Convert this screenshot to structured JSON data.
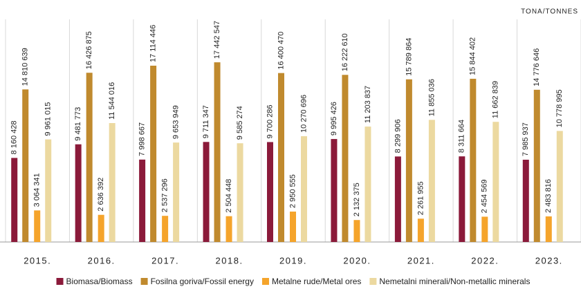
{
  "chart_data": {
    "type": "bar",
    "unit_label": "TONA/TONNES",
    "categories": [
      "2015.",
      "2016.",
      "2017.",
      "2018.",
      "2019.",
      "2020.",
      "2021.",
      "2022.",
      "2023."
    ],
    "ylim": [
      0,
      20000000
    ],
    "series": [
      {
        "name": "Biomasa/Biomass",
        "color": "#8b1a3a",
        "values": [
          8160428,
          9481773,
          7998667,
          9711347,
          9700286,
          9995426,
          8299906,
          8311664,
          7985937
        ],
        "value_labels": [
          "8 160 428",
          "9 481 773",
          "7 998 667",
          "9 711 347",
          "9 700 286",
          "9 995 426",
          "8 299 906",
          "8 311 664",
          "7 985 937"
        ]
      },
      {
        "name": "Fosilna goriva/Fossil energy",
        "color": "#c08a2e",
        "values": [
          14810639,
          16426875,
          17114446,
          17442547,
          16400470,
          16222610,
          15789864,
          15844402,
          14776646
        ],
        "value_labels": [
          "14 810 639",
          "16 426 875",
          "17 114 446",
          "17 442 547",
          "16 400 470",
          "16 222 610",
          "15 789 864",
          "15 844 402",
          "14 776 646"
        ]
      },
      {
        "name": "Metalne rude/Metal ores",
        "color": "#f5a42b",
        "values": [
          3064341,
          2636392,
          2537296,
          2504448,
          2950555,
          2132375,
          2261955,
          2454569,
          2483816
        ],
        "value_labels": [
          "3 064 341",
          "2 636 392",
          "2 537 296",
          "2 504 448",
          "2 950 555",
          "2 132 375",
          "2 261 955",
          "2 454 569",
          "2 483 816"
        ]
      },
      {
        "name": "Nemetalni minerali/Non-metallic minerals",
        "color": "#ecd9a0",
        "values": [
          9961015,
          11544016,
          9653949,
          9585274,
          10270696,
          11203837,
          11855036,
          11662839,
          10778995
        ],
        "value_labels": [
          "9 961 015",
          "11 544 016",
          "9 653 949",
          "9 585 274",
          "10 270 696",
          "11 203 837",
          "11 855 036",
          "11 662 839",
          "10 778 995"
        ]
      }
    ]
  }
}
